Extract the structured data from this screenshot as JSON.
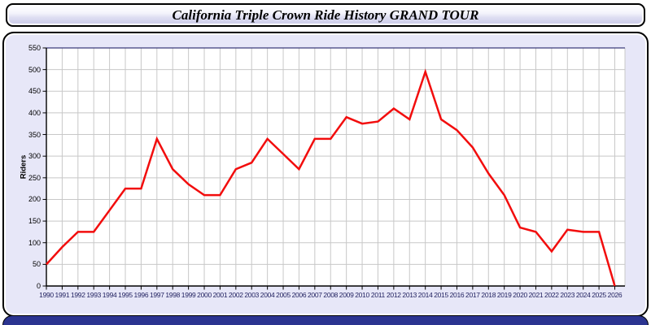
{
  "header": {
    "title": "California Triple Crown Ride History GRAND TOUR"
  },
  "chart_data": {
    "type": "line",
    "title": "California Triple Crown Ride History GRAND TOUR",
    "xlabel": "",
    "ylabel": "Riders",
    "ylim": [
      0,
      550
    ],
    "ytick_step": 50,
    "grid": true,
    "legend": "none",
    "x": [
      "1990",
      "1991",
      "1992",
      "1993",
      "1994",
      "1995",
      "1996",
      "1997",
      "1998",
      "1999",
      "2000",
      "2001",
      "2002",
      "2003",
      "2004",
      "2005",
      "2006",
      "2007",
      "2008",
      "2009",
      "2010",
      "2011",
      "2012",
      "2013",
      "2014",
      "2015",
      "2016",
      "2017",
      "2018",
      "2019",
      "2020",
      "2021",
      "2022",
      "2023",
      "2024",
      "2025",
      "2026"
    ],
    "series": [
      {
        "name": "Riders",
        "values": [
          50,
          90,
          125,
          125,
          175,
          225,
          225,
          340,
          270,
          235,
          210,
          210,
          270,
          285,
          340,
          305,
          270,
          340,
          340,
          390,
          375,
          380,
          410,
          385,
          495,
          385,
          360,
          320,
          260,
          210,
          135,
          125,
          80,
          130,
          125,
          125,
          0
        ]
      }
    ]
  },
  "colors": {
    "line": "#f20d0d",
    "panel_background": "#e7e7f8",
    "plot_background": "#ffffff",
    "gridline": "#c8c8c8",
    "axis": "#000000",
    "plot_top_border": "#3c3c7a",
    "x_label": "#1f1f5e",
    "footer": "#2b3490"
  }
}
